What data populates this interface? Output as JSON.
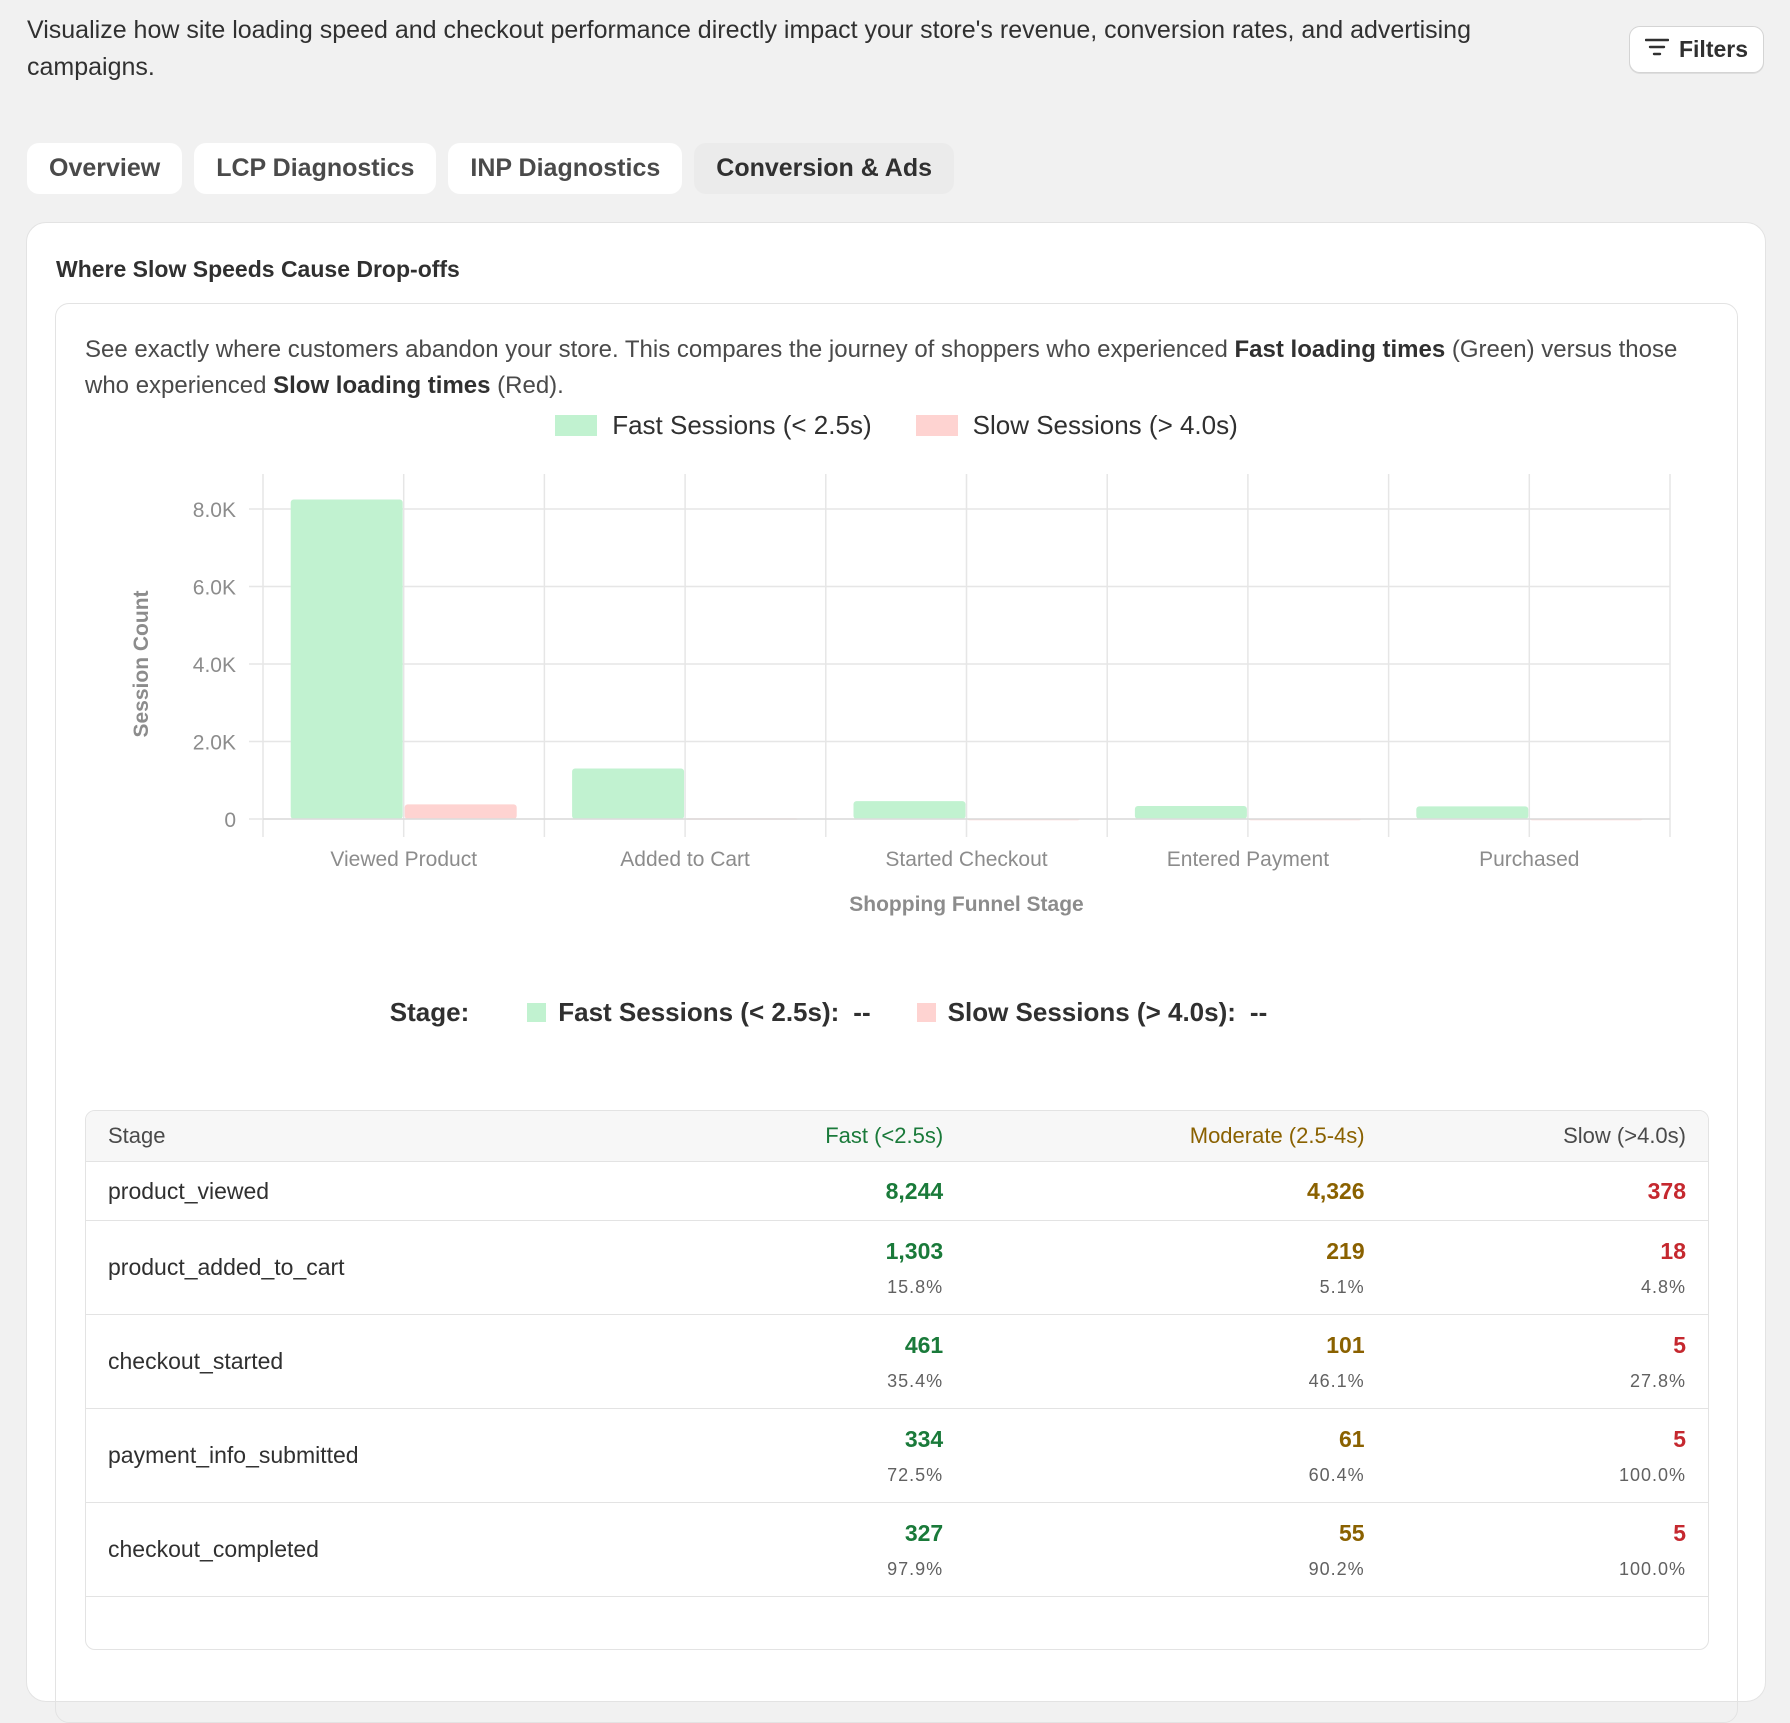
{
  "description": "Visualize how site loading speed and checkout performance directly impact your store's revenue, conversion rates, and advertising campaigns.",
  "filters_button": {
    "label": "Filters",
    "icon": "filter-lines-icon"
  },
  "tabs": [
    {
      "label": "Overview",
      "active": false
    },
    {
      "label": "LCP Diagnostics",
      "active": false
    },
    {
      "label": "INP Diagnostics",
      "active": false
    },
    {
      "label": "Conversion & Ads",
      "active": true
    }
  ],
  "card": {
    "title": "Where Slow Speeds Cause Drop-offs",
    "intro": {
      "part1": "See exactly where customers abandon your store. This compares the journey of shoppers who experienced ",
      "bold1": "Fast loading times",
      "part2": " (Green) versus those who experienced ",
      "bold2": "Slow loading times",
      "part3": " (Red)."
    }
  },
  "colors": {
    "fast_bar": "#c1f2d0",
    "slow_bar": "#fed3d1",
    "fast_text": "#1a7a3a",
    "moderate_text": "#8a6100",
    "slow_text": "#c5282f"
  },
  "chart_data": {
    "type": "bar",
    "title": "",
    "xlabel": "Shopping Funnel Stage",
    "ylabel": "Session Count",
    "ylim": [
      0,
      8000
    ],
    "yticks": [
      "0",
      "2.0K",
      "4.0K",
      "6.0K",
      "8.0K"
    ],
    "ytick_values": [
      0,
      2000,
      4000,
      6000,
      8000
    ],
    "categories": [
      "Viewed Product",
      "Added to Cart",
      "Started Checkout",
      "Entered Payment",
      "Purchased"
    ],
    "series": [
      {
        "name": "Fast Sessions (< 2.5s)",
        "values": [
          8244,
          1303,
          461,
          334,
          327
        ]
      },
      {
        "name": "Slow Sessions (> 4.0s)",
        "values": [
          378,
          18,
          5,
          5,
          5
        ]
      }
    ],
    "grid": true,
    "legend": "top-center"
  },
  "tooltip": {
    "stage_label": "Stage:",
    "fast_label": "Fast Sessions (< 2.5s):",
    "fast_value": "--",
    "slow_label": "Slow Sessions (> 4.0s):",
    "slow_value": "--"
  },
  "table": {
    "headers": {
      "stage": "Stage",
      "fast": "Fast (<2.5s)",
      "moderate": "Moderate (2.5-4s)",
      "slow": "Slow (>4.0s)"
    },
    "rows": [
      {
        "stage": "product_viewed",
        "fast": "8,244",
        "fast_pct": "",
        "moderate": "4,326",
        "moderate_pct": "",
        "slow": "378",
        "slow_pct": ""
      },
      {
        "stage": "product_added_to_cart",
        "fast": "1,303",
        "fast_pct": "15.8%",
        "moderate": "219",
        "moderate_pct": "5.1%",
        "slow": "18",
        "slow_pct": "4.8%"
      },
      {
        "stage": "checkout_started",
        "fast": "461",
        "fast_pct": "35.4%",
        "moderate": "101",
        "moderate_pct": "46.1%",
        "slow": "5",
        "slow_pct": "27.8%"
      },
      {
        "stage": "payment_info_submitted",
        "fast": "334",
        "fast_pct": "72.5%",
        "moderate": "61",
        "moderate_pct": "60.4%",
        "slow": "5",
        "slow_pct": "100.0%"
      },
      {
        "stage": "checkout_completed",
        "fast": "327",
        "fast_pct": "97.9%",
        "moderate": "55",
        "moderate_pct": "90.2%",
        "slow": "5",
        "slow_pct": "100.0%"
      }
    ]
  }
}
